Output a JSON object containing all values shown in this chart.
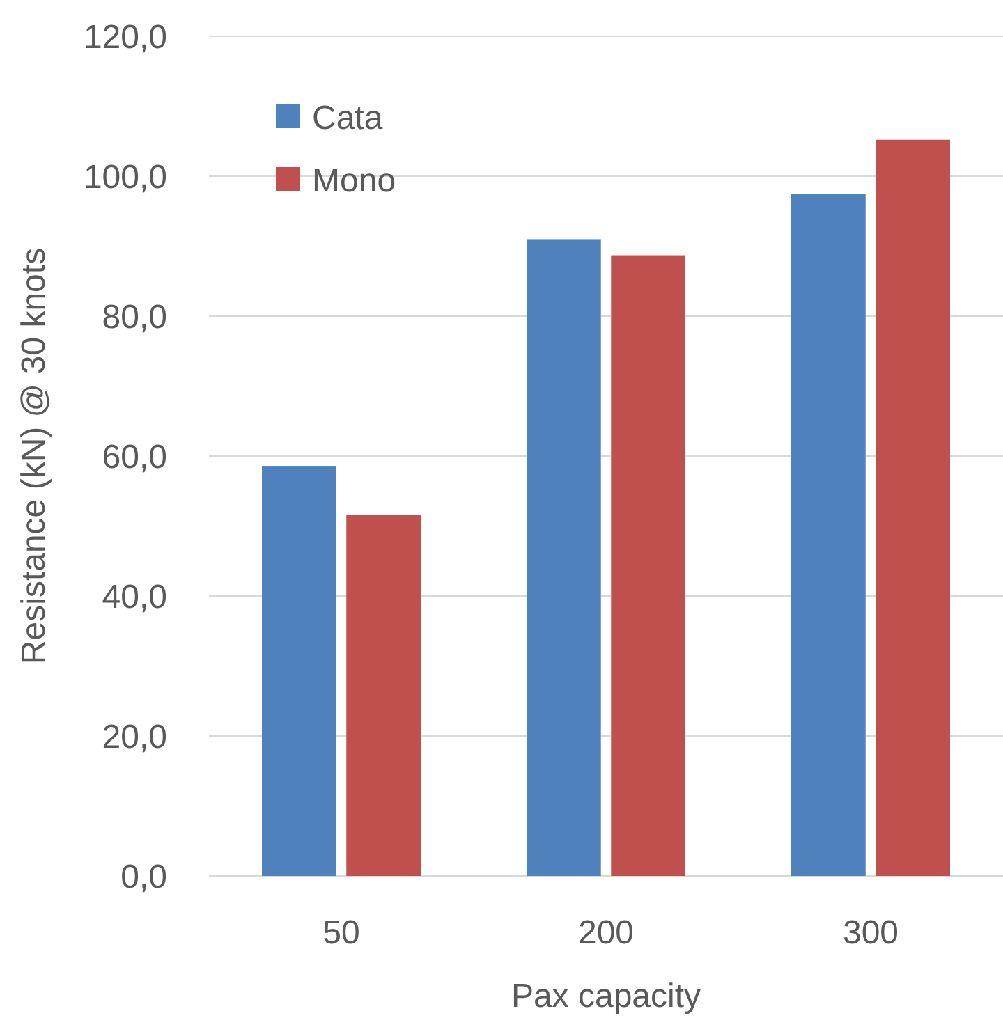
{
  "chart_data": {
    "type": "bar",
    "xlabel": "Pax capacity",
    "ylabel": "Resistance (kN) @ 30 knots",
    "categories": [
      "50",
      "200",
      "300"
    ],
    "series": [
      {
        "name": "Cata",
        "color": "#4f81bd",
        "values": [
          58.6,
          91.0,
          97.5
        ]
      },
      {
        "name": "Mono",
        "color": "#c0504d",
        "values": [
          51.6,
          88.7,
          105.2
        ]
      }
    ],
    "ylim": [
      0,
      120
    ],
    "yticks": [
      {
        "value": 0,
        "label": "0,0"
      },
      {
        "value": 20,
        "label": "20,0"
      },
      {
        "value": 40,
        "label": "40,0"
      },
      {
        "value": 60,
        "label": "60,0"
      },
      {
        "value": 80,
        "label": "80,0"
      },
      {
        "value": 100,
        "label": "100,0"
      },
      {
        "value": 120,
        "label": "120,0"
      }
    ],
    "grid": "y",
    "legend": "top left"
  }
}
